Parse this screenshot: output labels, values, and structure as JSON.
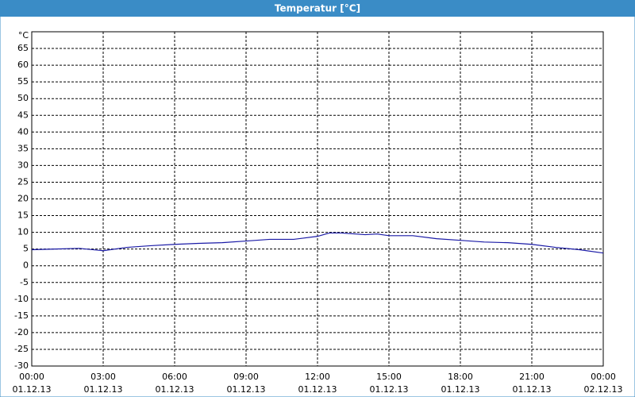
{
  "chart_data": {
    "type": "line",
    "title": "Temperatur [°C]",
    "x": [
      0,
      1,
      2,
      3,
      4,
      5,
      6,
      7,
      8,
      9,
      10,
      11,
      12,
      12.5,
      13,
      14,
      14.5,
      15,
      16,
      17,
      18,
      19,
      20,
      21,
      22,
      23,
      24
    ],
    "series": [
      {
        "color": "#1a1aa6",
        "values": [
          4.8,
          5,
          5.2,
          4.5,
          5.5,
          6,
          6.4,
          6.7,
          6.9,
          7.4,
          7.9,
          7.9,
          8.8,
          9.8,
          9.8,
          9.3,
          9.5,
          9,
          9,
          8.1,
          7.6,
          7.1,
          6.9,
          6.4,
          5.5,
          4.8,
          3.8
        ]
      }
    ],
    "xlim": [
      0,
      24
    ],
    "xticks": [
      {
        "value": 0,
        "label": "00:00",
        "date": "01.12.13"
      },
      {
        "value": 3,
        "label": "03:00",
        "date": "01.12.13"
      },
      {
        "value": 6,
        "label": "06:00",
        "date": "01.12.13"
      },
      {
        "value": 9,
        "label": "09:00",
        "date": "01.12.13"
      },
      {
        "value": 12,
        "label": "12:00",
        "date": "01.12.13"
      },
      {
        "value": 15,
        "label": "15:00",
        "date": "01.12.13"
      },
      {
        "value": 18,
        "label": "18:00",
        "date": "01.12.13"
      },
      {
        "value": 21,
        "label": "21:00",
        "date": "01.12.13"
      },
      {
        "value": 24,
        "label": "00:00",
        "date": "02.12.13"
      }
    ],
    "ylim": [
      -30,
      70
    ],
    "yticks": [
      -30,
      -25,
      -20,
      -15,
      -10,
      -5,
      0,
      5,
      10,
      15,
      20,
      25,
      30,
      35,
      40,
      45,
      50,
      55,
      60,
      65,
      {
        "value": 70,
        "label": "°C"
      }
    ],
    "grid": true
  }
}
